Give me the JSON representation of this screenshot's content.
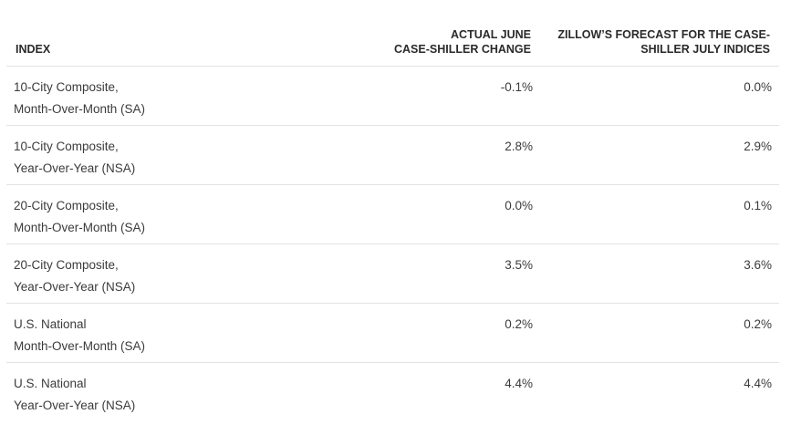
{
  "table": {
    "headers": {
      "index": "INDEX",
      "actual_line1": "ACTUAL JUNE",
      "actual_line2": "CASE-SHILLER CHANGE",
      "forecast_line1": "ZILLOW’S FORECAST FOR THE CASE-",
      "forecast_line2": "SHILLER JULY INDICES"
    },
    "rows": [
      {
        "name_line1": "10-City Composite,",
        "name_line2": "Month-Over-Month (SA)",
        "actual": "-0.1%",
        "forecast": "0.0%"
      },
      {
        "name_line1": "10-City Composite,",
        "name_line2": "Year-Over-Year (NSA)",
        "actual": "2.8%",
        "forecast": "2.9%"
      },
      {
        "name_line1": "20-City Composite,",
        "name_line2": "Month-Over-Month (SA)",
        "actual": "0.0%",
        "forecast": "0.1%"
      },
      {
        "name_line1": "20-City Composite,",
        "name_line2": "Year-Over-Year (NSA)",
        "actual": "3.5%",
        "forecast": "3.6%"
      },
      {
        "name_line1": "U.S. National",
        "name_line2": "Month-Over-Month (SA)",
        "actual": "0.2%",
        "forecast": "0.2%"
      },
      {
        "name_line1": "U.S. National",
        "name_line2": "Year-Over-Year (NSA)",
        "actual": "4.4%",
        "forecast": "4.4%"
      }
    ]
  }
}
